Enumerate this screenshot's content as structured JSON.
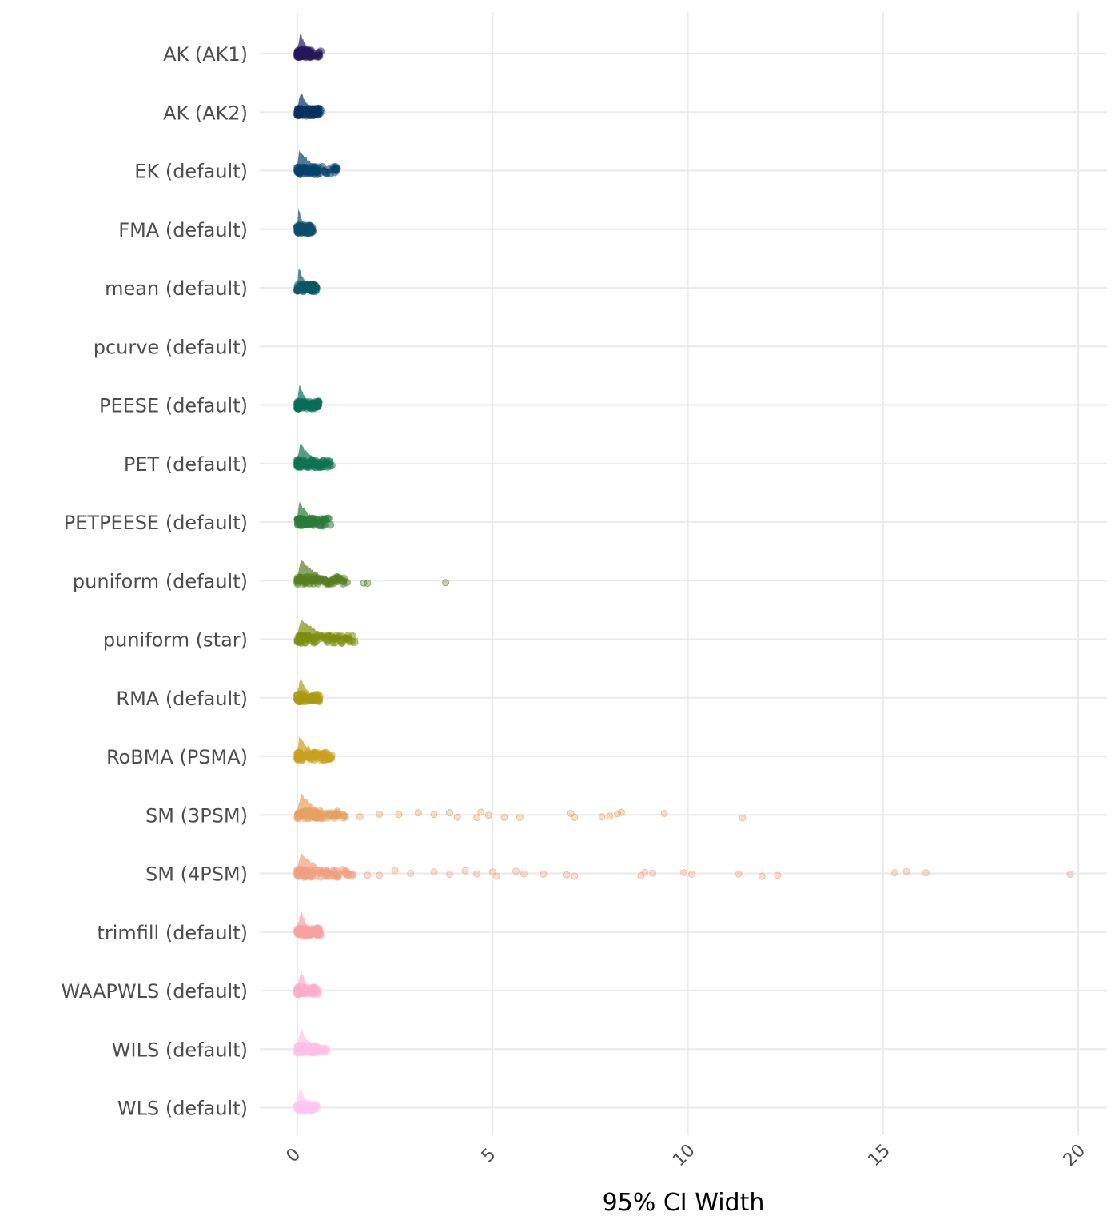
{
  "chart_data": {
    "type": "raincloud",
    "xlabel": "95% CI Width",
    "xlim": [
      0,
      20
    ],
    "xticks": [
      0,
      5,
      10,
      15,
      20
    ],
    "xtick_labels": [
      "0",
      "5",
      "10",
      "15",
      "20"
    ],
    "grid": true,
    "legend": "none",
    "categories": [
      {
        "label": "WLS (default)",
        "color": "#ffc6f0",
        "max": 0.5,
        "density_peak": 0.08,
        "outliers": []
      },
      {
        "label": "WILS (default)",
        "color": "#ffbfe5",
        "max": 0.75,
        "density_peak": 0.1,
        "outliers": []
      },
      {
        "label": "WAAPWLS (default)",
        "color": "#ffadcc",
        "max": 0.55,
        "density_peak": 0.1,
        "outliers": []
      },
      {
        "label": "trimfill (default)",
        "color": "#f8a1a3",
        "max": 0.6,
        "density_peak": 0.1,
        "outliers": []
      },
      {
        "label": "SM (4PSM)",
        "color": "#f0a081",
        "max": 1.5,
        "density_peak": 0.1,
        "outliers": [
          1.8,
          2.1,
          2.5,
          2.9,
          3.5,
          3.9,
          4.3,
          4.6,
          5.0,
          5.1,
          5.6,
          5.8,
          6.3,
          6.9,
          7.1,
          8.8,
          8.9,
          9.1,
          9.9,
          10.1,
          11.3,
          11.9,
          12.3,
          15.3,
          15.6,
          16.1,
          19.8
        ]
      },
      {
        "label": "SM (3PSM)",
        "color": "#e5a060",
        "max": 1.3,
        "density_peak": 0.1,
        "outliers": [
          1.6,
          2.1,
          2.6,
          3.1,
          3.5,
          3.9,
          4.1,
          4.6,
          4.7,
          4.9,
          5.3,
          5.7,
          7.0,
          7.1,
          7.8,
          8.0,
          8.2,
          8.3,
          9.4,
          11.4
        ]
      },
      {
        "label": "RoBMA (PSMA)",
        "color": "#c8a020",
        "max": 0.9,
        "density_peak": 0.05,
        "outliers": []
      },
      {
        "label": "RMA (default)",
        "color": "#a79a12",
        "max": 0.65,
        "density_peak": 0.08,
        "outliers": []
      },
      {
        "label": "puniform (star)",
        "color": "#7c8e0e",
        "max": 1.55,
        "density_peak": 0.1,
        "outliers": []
      },
      {
        "label": "puniform (default)",
        "color": "#577d23",
        "max": 1.3,
        "density_peak": 0.1,
        "outliers": [
          1.7,
          1.8,
          3.8
        ]
      },
      {
        "label": "PETPEESE (default)",
        "color": "#2c7a38",
        "max": 0.85,
        "density_peak": 0.05,
        "outliers": []
      },
      {
        "label": "PET (default)",
        "color": "#0e7350",
        "max": 0.9,
        "density_peak": 0.08,
        "outliers": []
      },
      {
        "label": "PEESE (default)",
        "color": "#0b6b58",
        "max": 0.55,
        "density_peak": 0.06,
        "outliers": []
      },
      {
        "label": "pcurve (default)",
        "color": "#0b6060",
        "max": 0,
        "density_peak": 0,
        "outliers": []
      },
      {
        "label": "mean (default)",
        "color": "#0b5866",
        "max": 0.5,
        "density_peak": 0.04,
        "outliers": []
      },
      {
        "label": "FMA (default)",
        "color": "#0b4e6a",
        "max": 0.4,
        "density_peak": 0.03,
        "outliers": []
      },
      {
        "label": "EK (default)",
        "color": "#06426a",
        "max": 1.05,
        "density_peak": 0.05,
        "outliers": []
      },
      {
        "label": "AK (AK2)",
        "color": "#08305e",
        "max": 0.6,
        "density_peak": 0.1,
        "outliers": []
      },
      {
        "label": "AK (AK1)",
        "color": "#25185a",
        "max": 0.6,
        "density_peak": 0.08,
        "outliers": []
      }
    ]
  }
}
